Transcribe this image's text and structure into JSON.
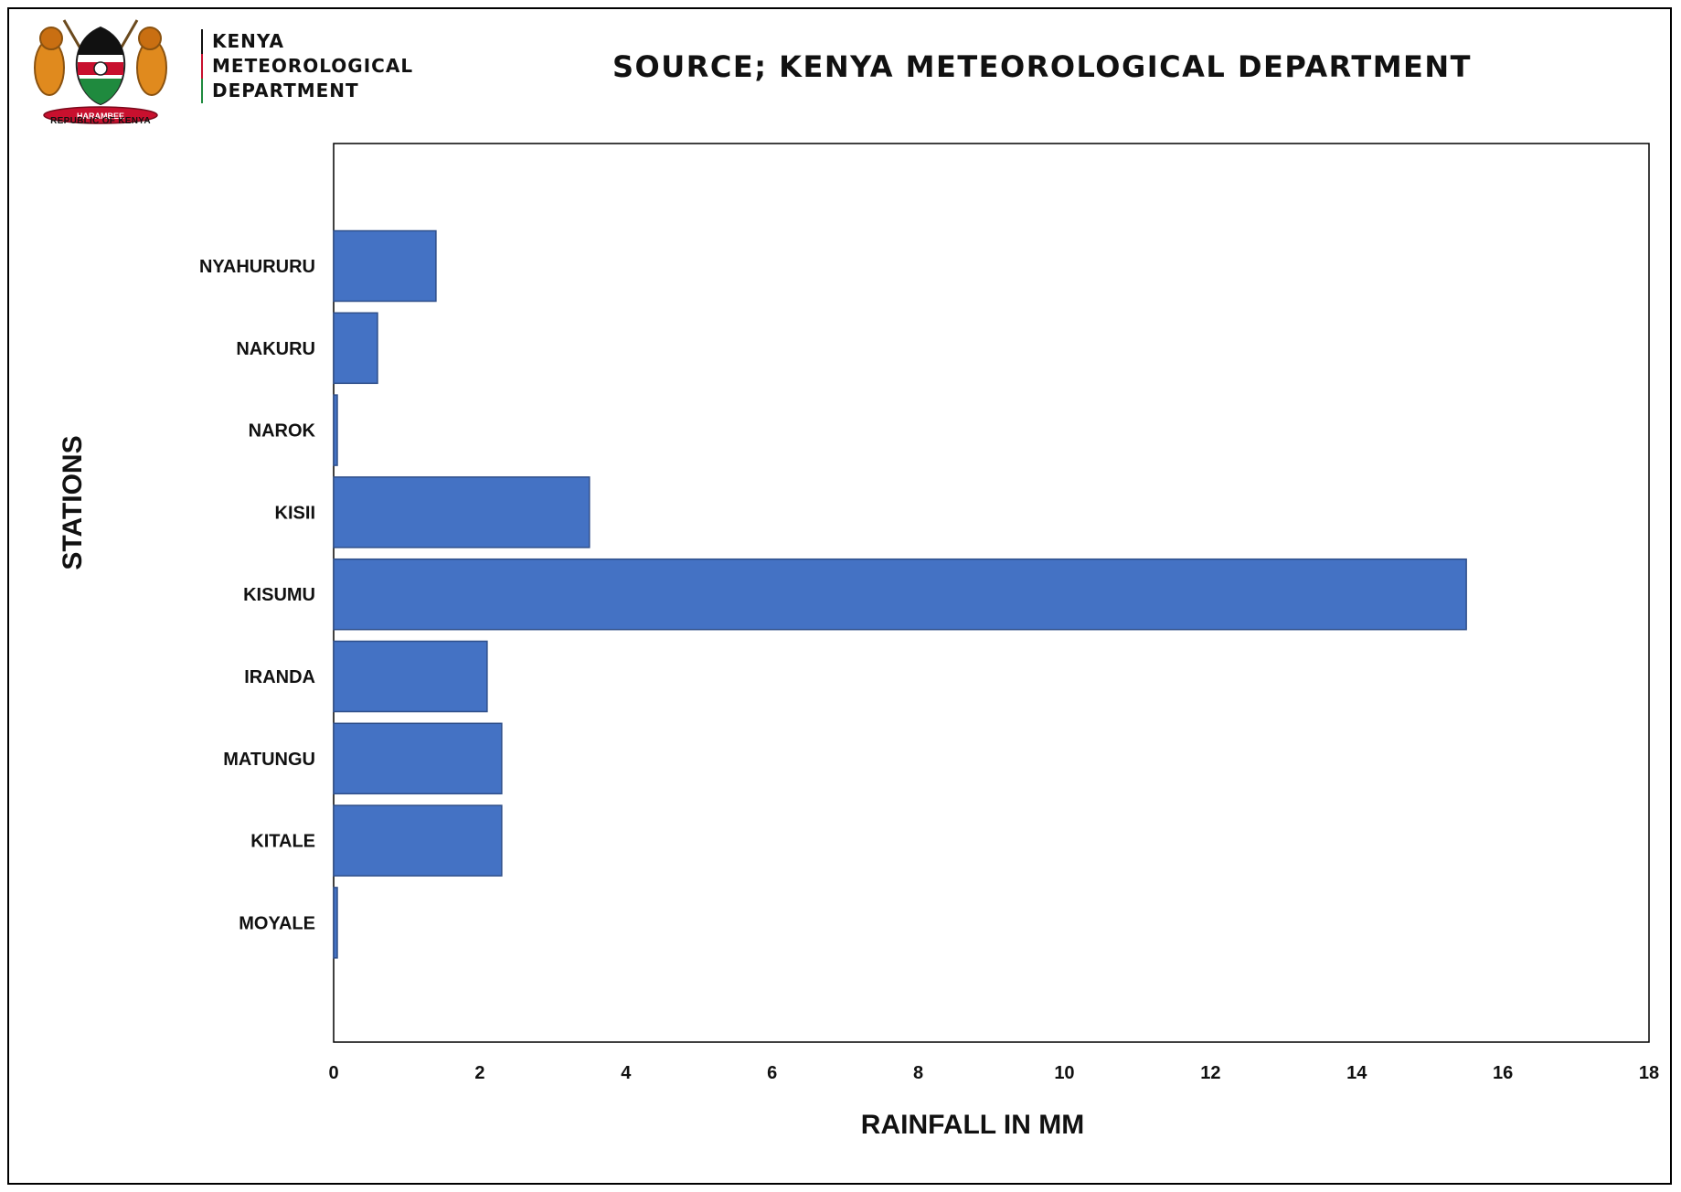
{
  "header": {
    "emblem_caption": "REPUBLIC OF KENYA",
    "emblem_motto": "HARAMBEE",
    "org_lines": [
      "KENYA",
      "METEOROLOGICAL",
      "DEPARTMENT"
    ],
    "source": "SOURCE; KENYA METEOROLOGICAL DEPARTMENT"
  },
  "colors": {
    "bar": "#4472c4",
    "bar_border": "#2f4f8a",
    "kenya_red": "#c8102e",
    "kenya_green": "#1f8a3e"
  },
  "chart_data": {
    "type": "bar",
    "orientation": "horizontal",
    "title": "",
    "xlabel": "RAINFALL IN MM",
    "ylabel": "STATIONS",
    "xlim": [
      0,
      18
    ],
    "xticks": [
      0,
      2,
      4,
      6,
      8,
      10,
      12,
      14,
      16,
      18
    ],
    "grid": false,
    "categories": [
      "NYAHURURU",
      "NAKURU",
      "NAROK",
      "KISII",
      "KISUMU",
      "IRANDA",
      "MATUNGU",
      "KITALE",
      "MOYALE"
    ],
    "values": [
      1.4,
      0.6,
      0.05,
      3.5,
      15.5,
      2.1,
      2.3,
      2.3,
      0.05
    ]
  }
}
